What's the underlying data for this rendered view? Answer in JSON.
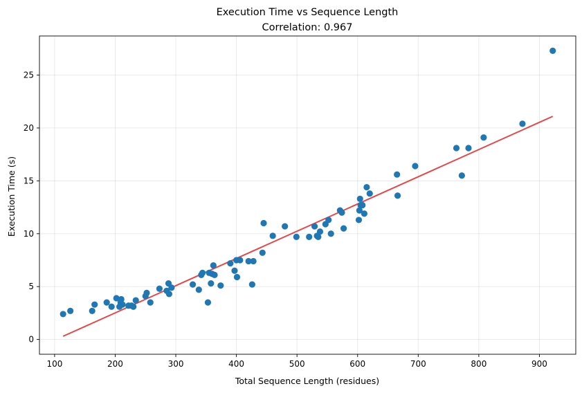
{
  "chart_data": {
    "type": "scatter",
    "title": "Execution Time vs Sequence Length",
    "subtitle": "Correlation: 0.967",
    "xlabel": "Total Sequence Length (residues)",
    "ylabel": "Execution Time (s)",
    "xlim": [
      75,
      960
    ],
    "ylim": [
      -1.4,
      28.7
    ],
    "xticks": [
      100,
      200,
      300,
      400,
      500,
      600,
      700,
      800,
      900
    ],
    "yticks": [
      0,
      5,
      10,
      15,
      20,
      25
    ],
    "grid": true,
    "colors": {
      "points": "#1f77b4",
      "fit_line": "#e63232"
    },
    "series": [
      {
        "kind": "points",
        "x": [
          114,
          126,
          162,
          166,
          186,
          194,
          202,
          207,
          209,
          210,
          212,
          222,
          227,
          230,
          234,
          250,
          252,
          258,
          273,
          285,
          288,
          289,
          293,
          328,
          338,
          342,
          344,
          353,
          355,
          358,
          360,
          362,
          364,
          374,
          390,
          397,
          400,
          401,
          406,
          420,
          426,
          428,
          443,
          445,
          460,
          480,
          499,
          520,
          529,
          533,
          535,
          538,
          547,
          552,
          556,
          571,
          574,
          577,
          602,
          603,
          604,
          605,
          608,
          611,
          615,
          620,
          665,
          666,
          695,
          763,
          772,
          783,
          808,
          872,
          922
        ],
        "y": [
          2.4,
          2.7,
          2.7,
          3.3,
          3.5,
          3.1,
          3.9,
          3.1,
          3.5,
          3.8,
          3.3,
          3.2,
          3.2,
          3.1,
          3.7,
          4.1,
          4.4,
          3.5,
          4.8,
          4.6,
          5.3,
          4.3,
          4.9,
          5.2,
          4.7,
          6.1,
          6.3,
          3.5,
          6.3,
          5.3,
          6.2,
          7.0,
          6.1,
          5.1,
          7.2,
          6.5,
          7.5,
          5.9,
          7.5,
          7.4,
          5.2,
          7.4,
          8.2,
          11.0,
          9.8,
          10.7,
          9.7,
          9.7,
          10.7,
          9.8,
          9.7,
          10.2,
          10.9,
          11.3,
          10.0,
          12.2,
          12.0,
          10.5,
          11.3,
          12.2,
          13.3,
          12.7,
          12.7,
          11.9,
          14.4,
          13.8,
          15.6,
          13.6,
          16.4,
          18.1,
          15.5,
          18.1,
          19.1,
          20.4,
          27.3
        ]
      },
      {
        "kind": "fit_line",
        "x": [
          114,
          922
        ],
        "y": [
          0.3,
          21.1
        ]
      }
    ]
  }
}
